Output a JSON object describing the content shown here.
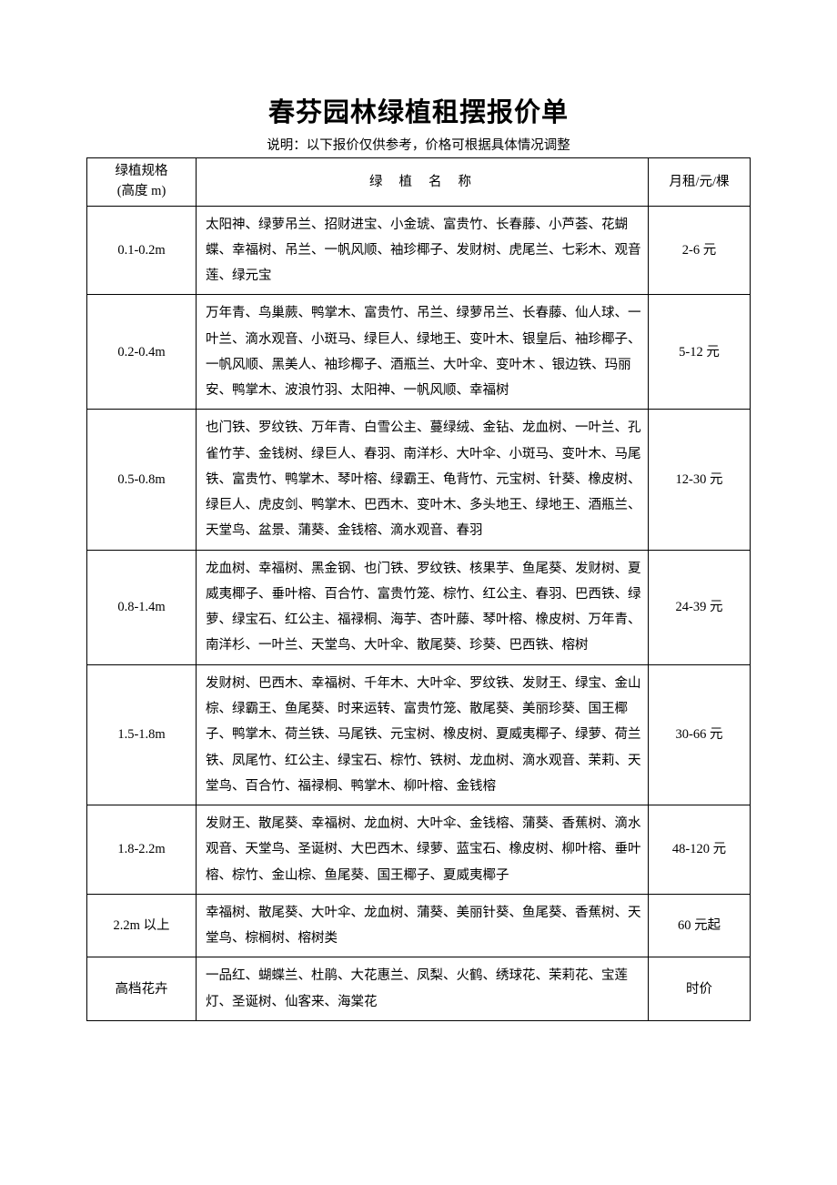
{
  "title": "春芬园林绿植租摆报价单",
  "subtitle": "说明：以下报价仅供参考，价格可根据具体情况调整",
  "headers": {
    "spec_line1": "绿植规格",
    "spec_line2": "(高度 m)",
    "name": "绿植名称",
    "price": "月租/元/棵"
  },
  "rows": [
    {
      "spec": "0.1-0.2m",
      "names": "太阳神、绿萝吊兰、招财进宝、小金琥、富贵竹、长春藤、小芦荟、花蝴蝶、幸福树、吊兰、一帆风顺、袖珍椰子、发财树、虎尾兰、七彩木、观音莲、绿元宝",
      "price": "2-6 元"
    },
    {
      "spec": "0.2-0.4m",
      "names": "万年青、鸟巢蕨、鸭掌木、富贵竹、吊兰、绿萝吊兰、长春藤、仙人球、一叶兰、滴水观音、小斑马、绿巨人、绿地王、变叶木、银皇后、袖珍椰子、一帆风顺、黑美人、袖珍椰子、酒瓶兰、大叶伞、变叶木 、银边铁、玛丽安、鸭掌木、波浪竹羽、太阳神、一帆风顺、幸福树",
      "price": "5-12 元"
    },
    {
      "spec": "0.5-0.8m",
      "names": "也门铁、罗纹铁、万年青、白雪公主、蔓绿绒、金钻、龙血树、一叶兰、孔雀竹芋、金钱树、绿巨人、春羽、南洋杉、大叶伞、小斑马、变叶木、马尾铁、富贵竹、鸭掌木、琴叶榕、绿霸王、龟背竹、元宝树、针葵、橡皮树、绿巨人、虎皮剑、鸭掌木、巴西木、变叶木、多头地王、绿地王、酒瓶兰、天堂鸟、盆景、蒲葵、金钱榕、滴水观音、春羽",
      "price": "12-30 元"
    },
    {
      "spec": "0.8-1.4m",
      "names": "龙血树、幸福树、黑金钢、也门铁、罗纹铁、核果芋、鱼尾葵、发财树、夏威夷椰子、垂叶榕、百合竹、富贵竹笼、棕竹、红公主、春羽、巴西铁、绿萝、绿宝石、红公主、福禄桐、海芋、杏叶藤、琴叶榕、橡皮树、万年青、南洋杉、一叶兰、天堂鸟、大叶伞、散尾葵、珍葵、巴西铁、榕树",
      "price": "24-39 元"
    },
    {
      "spec": "1.5-1.8m",
      "names": "发财树、巴西木、幸福树、千年木、大叶伞、罗纹铁、发财王、绿宝、金山棕、绿霸王、鱼尾葵、时来运转、富贵竹笼、散尾葵、美丽珍葵、国王椰子、鸭掌木、荷兰铁、马尾铁、元宝树、橡皮树、夏威夷椰子、绿萝、荷兰铁、凤尾竹、红公主、绿宝石、棕竹、铁树、龙血树、滴水观音、茉莉、天堂鸟、百合竹、福禄桐、鸭掌木、柳叶榕、金钱榕",
      "price": "30-66 元"
    },
    {
      "spec": "1.8-2.2m",
      "names": "发财王、散尾葵、幸福树、龙血树、大叶伞、金钱榕、蒲葵、香蕉树、滴水观音、天堂鸟、圣诞树、大巴西木、绿萝、蓝宝石、橡皮树、柳叶榕、垂叶榕、棕竹、金山棕、鱼尾葵、国王椰子、夏威夷椰子",
      "price": "48-120 元"
    },
    {
      "spec": "2.2m 以上",
      "names": "幸福树、散尾葵、大叶伞、龙血树、蒲葵、美丽针葵、鱼尾葵、香蕉树、天堂鸟、棕榈树、榕树类",
      "price": "60 元起"
    },
    {
      "spec": "高档花卉",
      "names": "一品红、蝴蝶兰、杜鹃、大花惠兰、凤梨、火鹤、绣球花、茉莉花、宝莲灯、圣诞树、仙客来、海棠花",
      "price": "时价"
    }
  ]
}
